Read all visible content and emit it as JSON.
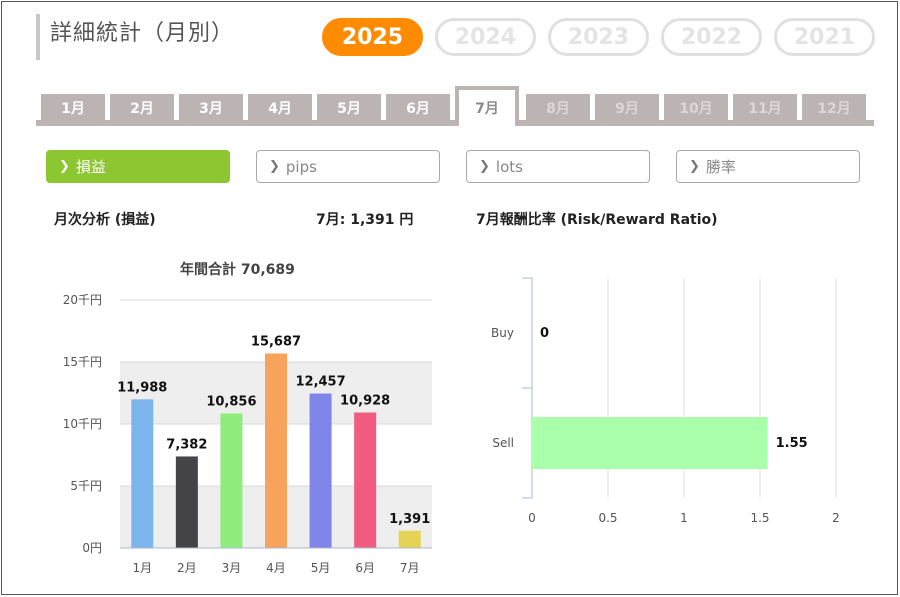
{
  "page": {
    "title": "詳細統計（月別）"
  },
  "years": [
    {
      "label": "2025",
      "active": true
    },
    {
      "label": "2024",
      "active": false
    },
    {
      "label": "2023",
      "active": false
    },
    {
      "label": "2022",
      "active": false
    },
    {
      "label": "2021",
      "active": false
    }
  ],
  "months": [
    {
      "label": "1月",
      "state": "normal"
    },
    {
      "label": "2月",
      "state": "normal"
    },
    {
      "label": "3月",
      "state": "normal"
    },
    {
      "label": "4月",
      "state": "normal"
    },
    {
      "label": "5月",
      "state": "normal"
    },
    {
      "label": "6月",
      "state": "normal"
    },
    {
      "label": "7月",
      "state": "active"
    },
    {
      "label": "8月",
      "state": "disabled"
    },
    {
      "label": "9月",
      "state": "disabled"
    },
    {
      "label": "10月",
      "state": "disabled"
    },
    {
      "label": "11月",
      "state": "disabled"
    },
    {
      "label": "12月",
      "state": "disabled"
    }
  ],
  "filters": [
    {
      "label": "損益",
      "active": true
    },
    {
      "label": "pips",
      "active": false
    },
    {
      "label": "lots",
      "active": false
    },
    {
      "label": "勝率",
      "active": false
    }
  ],
  "monthly": {
    "heading": "月次分析 (損益)",
    "current_value": "7月:  1,391 円",
    "total_label": "年間合計 70,689"
  },
  "rr": {
    "heading": "7月報酬比率 (Risk/Reward Ratio)"
  },
  "colors": {
    "accent": "#ff8c00",
    "filter_active": "#8cc631",
    "tab": "#bcb3b3"
  },
  "chart_data": [
    {
      "type": "bar",
      "categories": [
        "1月",
        "2月",
        "3月",
        "4月",
        "5月",
        "6月",
        "7月"
      ],
      "values": [
        11988,
        7382,
        10856,
        15687,
        12457,
        10928,
        1391
      ],
      "value_labels": [
        "11,988",
        "7,382",
        "10,856",
        "15,687",
        "12,457",
        "10,928",
        "1,391"
      ],
      "colors": [
        "#7cb5ec",
        "#434348",
        "#90ed7d",
        "#f7a35c",
        "#8085e9",
        "#f15c80",
        "#e4d354"
      ],
      "ylim": [
        0,
        20000
      ],
      "yticks": [
        0,
        5000,
        10000,
        15000,
        20000
      ],
      "ytick_labels": [
        "0円",
        "5千円",
        "10千円",
        "15千円",
        "20千円"
      ],
      "grid": true,
      "title": "年間合計 70,689"
    },
    {
      "type": "bar",
      "orientation": "horizontal",
      "categories": [
        "Buy",
        "Sell"
      ],
      "values": [
        0,
        1.55
      ],
      "value_labels": [
        "0",
        "1.55"
      ],
      "colors": [
        "#aaffaa",
        "#aaffaa"
      ],
      "xlim": [
        0,
        2
      ],
      "xticks": [
        0,
        0.5,
        1,
        1.5,
        2
      ],
      "xtick_labels": [
        "0",
        "0.5",
        "1",
        "1.5",
        "2"
      ],
      "grid": true
    }
  ]
}
